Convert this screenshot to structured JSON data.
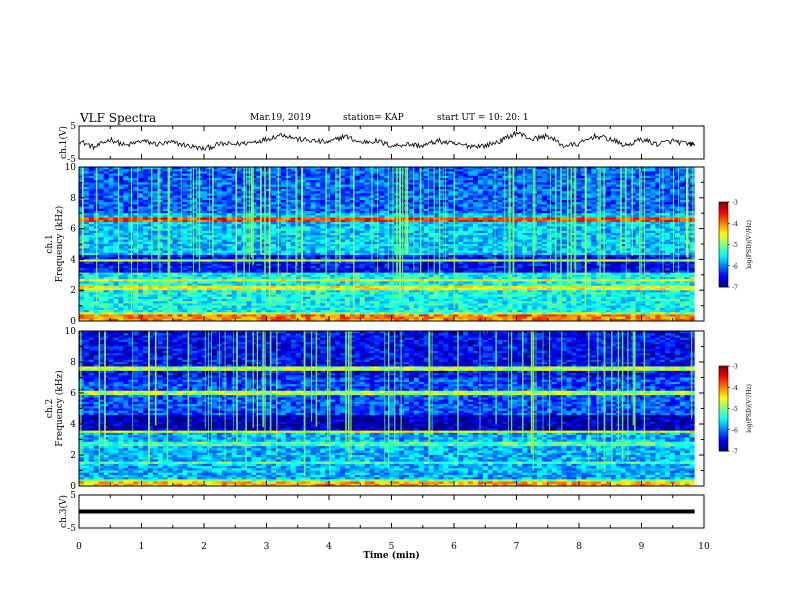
{
  "header": {
    "title": "VLF Spectra",
    "date": "Mar.19, 2019",
    "station": "station= KAP",
    "start": "start  UT =    10: 20: 1"
  },
  "chart_data": [
    {
      "type": "line",
      "panel": "ch1-waveform",
      "ylabel": "ch.1(V)",
      "ylim": [
        -5,
        5
      ],
      "yticks": [
        "5",
        "-5"
      ],
      "xlim": [
        0,
        10
      ],
      "series": [
        {
          "x": [
            0,
            0.25,
            0.5,
            0.75,
            1,
            1.25,
            1.5,
            1.75,
            2,
            2.25,
            2.5,
            2.75,
            3,
            3.25,
            3.5,
            3.75,
            4,
            4.25,
            4.5,
            4.75,
            5,
            5.25,
            5.5,
            5.75,
            6,
            6.25,
            6.5,
            6.75,
            7,
            7.25,
            7.5,
            7.75,
            8,
            8.25,
            8.5,
            8.75,
            9,
            9.25,
            9.5,
            9.75,
            9.85
          ],
          "y": [
            0.5,
            -1.5,
            1,
            -1,
            0.5,
            -0.5,
            0,
            -1,
            -2,
            -0.5,
            -0.5,
            0,
            1,
            2.5,
            1,
            0.5,
            0,
            2,
            0,
            0.5,
            -1,
            -0.5,
            -1,
            0.5,
            -0.5,
            -1,
            -1,
            0.5,
            3,
            1,
            2,
            -1,
            -0.5,
            2,
            1,
            -1,
            1,
            -0.5,
            0.5,
            -0.5,
            -0.5
          ]
        }
      ]
    },
    {
      "type": "heatmap",
      "panel": "ch1-spectrogram",
      "ylabel": "ch.1 Frequency (kHz)",
      "ylim": [
        0,
        10
      ],
      "yticks": [
        "0",
        "2",
        "4",
        "6",
        "8",
        "10"
      ],
      "xlim": [
        0,
        10
      ],
      "colorbar": {
        "label": "log(PSD)(V²/Hz)",
        "ticks": [
          "-3",
          "-4",
          "-5",
          "-6",
          "-7"
        ],
        "range": [
          -7,
          -3
        ]
      }
    },
    {
      "type": "heatmap",
      "panel": "ch2-spectrogram",
      "ylabel": "ch.2 Frequency (kHz)",
      "ylim": [
        0,
        10
      ],
      "yticks": [
        "0",
        "2",
        "4",
        "6",
        "8",
        "10"
      ],
      "xlim": [
        0,
        10
      ],
      "colorbar": {
        "label": "log(PSD)(V²/Hz)",
        "ticks": [
          "-3",
          "-4",
          "-5",
          "-6",
          "-7"
        ],
        "range": [
          -7,
          -3
        ]
      }
    },
    {
      "type": "line",
      "panel": "ch3-waveform",
      "ylabel": "ch.3(V)",
      "ylim": [
        -5,
        5
      ],
      "yticks": [
        "5",
        "-5"
      ],
      "xlim": [
        0,
        10
      ],
      "series": [
        {
          "x": [
            0,
            9.85
          ],
          "y": [
            0,
            0
          ]
        }
      ]
    }
  ],
  "xaxis": {
    "label": "Time (min)",
    "ticks": [
      "0",
      "1",
      "2",
      "3",
      "4",
      "5",
      "6",
      "7",
      "8",
      "9",
      "10"
    ]
  }
}
